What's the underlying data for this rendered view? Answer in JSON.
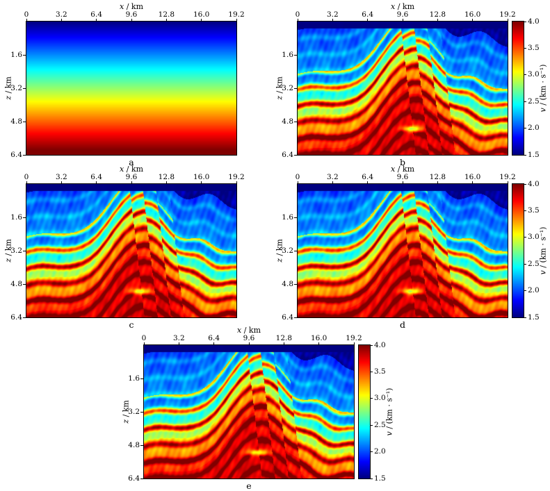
{
  "figure": {
    "type": "seismic-velocity-model-comparison",
    "xlabel": "x / km",
    "zlabel": "z / km",
    "colorbar_label": "v / (km · s⁻¹)",
    "x_ticks": [
      "0",
      "3.2",
      "6.4",
      "9.6",
      "12.8",
      "16.0",
      "19.2"
    ],
    "z_ticks": [
      "1.6",
      "3.2",
      "4.8",
      "6.4"
    ],
    "colorbar_ticks": [
      "4.0",
      "3.5",
      "3.0",
      "2.5",
      "2.0",
      "1.5"
    ],
    "velocity_min_kms": 1.5,
    "velocity_max_kms": 4.0,
    "colormap": "jet",
    "panels": [
      {
        "letter": "a",
        "kind": "initial",
        "colorbar": false
      },
      {
        "letter": "b",
        "kind": "marmousi",
        "colorbar": true
      },
      {
        "letter": "c",
        "kind": "marmousi",
        "colorbar": false
      },
      {
        "letter": "d",
        "kind": "marmousi",
        "colorbar": true
      },
      {
        "letter": "e",
        "kind": "marmousi",
        "colorbar": true
      }
    ]
  },
  "chart_data": [
    {
      "type": "heatmap",
      "panel": "a",
      "xlabel": "x / km",
      "ylabel": "z / km",
      "x_range": [
        0,
        19.2
      ],
      "y_range": [
        0,
        6.4
      ],
      "x_ticks": [
        0,
        3.2,
        6.4,
        9.6,
        12.8,
        16.0,
        19.2
      ],
      "y_ticks": [
        1.6,
        3.2,
        4.8,
        6.4
      ],
      "value_label": "v / (km · s⁻¹)",
      "value_range": [
        1.5,
        4.0
      ],
      "colorbar_ticks": [
        1.5,
        2.0,
        2.5,
        3.0,
        3.5,
        4.0
      ],
      "colorbar_shown": false,
      "colormap": "jet",
      "description": "Smooth laterally-invariant starting velocity model; velocity increases nearly linearly with depth from about 1.5 km/s at the surface to about 4.0 km/s at 6.4 km depth.",
      "depth_velocity_profile": [
        [
          0,
          1.5
        ],
        [
          1.6,
          2.15
        ],
        [
          3.2,
          2.8
        ],
        [
          4.8,
          3.45
        ],
        [
          6.4,
          4.1
        ]
      ]
    },
    {
      "type": "heatmap",
      "panel": "b",
      "xlabel": "x / km",
      "ylabel": "z / km",
      "x_range": [
        0,
        19.2
      ],
      "y_range": [
        0,
        6.4
      ],
      "x_ticks": [
        0,
        3.2,
        6.4,
        9.6,
        12.8,
        16.0,
        19.2
      ],
      "y_ticks": [
        1.6,
        3.2,
        4.8,
        6.4
      ],
      "value_label": "v / (km · s⁻¹)",
      "value_range": [
        1.5,
        4.0
      ],
      "colorbar_ticks": [
        1.5,
        2.0,
        2.5,
        3.0,
        3.5,
        4.0
      ],
      "colorbar_shown": true,
      "colormap": "jet",
      "description": "Marmousi-type velocity model: thin low-velocity (~1.5 km/s) layer at top, light-blue (~2-2.3 km/s) shallow sediments, folded and faulted dipping high-velocity (red, 3.5-4 km/s) layers forming an anticlinal/thrust complex near x = 9.6-13.5 km, wavy layered zone on the right, and a high-velocity (>3.5 km/s) massive deep section below about 4.6 km with a bright ~3 km/s lens near x = 10.4 km, z = 5.1 km."
    },
    {
      "type": "heatmap",
      "panel": "c",
      "xlabel": "x / km",
      "ylabel": "z / km",
      "x_range": [
        0,
        19.2
      ],
      "y_range": [
        0,
        6.4
      ],
      "x_ticks": [
        0,
        3.2,
        6.4,
        9.6,
        12.8,
        16.0,
        19.2
      ],
      "y_ticks": [
        1.6,
        3.2,
        4.8,
        6.4
      ],
      "value_label": "v / (km · s⁻¹)",
      "value_range": [
        1.5,
        4.0
      ],
      "colorbar_ticks": [
        1.5,
        2.0,
        2.5,
        3.0,
        3.5,
        4.0
      ],
      "colorbar_shown": false,
      "colormap": "jet",
      "description": "Marmousi-type velocity model result, visually similar to panel b with slight differences in fine-scale detail (inversion variant)."
    },
    {
      "type": "heatmap",
      "panel": "d",
      "xlabel": "x / km",
      "ylabel": "z / km",
      "x_range": [
        0,
        19.2
      ],
      "y_range": [
        0,
        6.4
      ],
      "x_ticks": [
        0,
        3.2,
        6.4,
        9.6,
        12.8,
        16.0,
        19.2
      ],
      "y_ticks": [
        1.6,
        3.2,
        4.8,
        6.4
      ],
      "value_label": "v / (km · s⁻¹)",
      "value_range": [
        1.5,
        4.0
      ],
      "colorbar_ticks": [
        1.5,
        2.0,
        2.5,
        3.0,
        3.5,
        4.0
      ],
      "colorbar_shown": true,
      "colormap": "jet",
      "description": "Marmousi-type velocity model result, visually similar to panel b with slight differences in fine-scale detail (inversion variant)."
    },
    {
      "type": "heatmap",
      "panel": "e",
      "xlabel": "x / km",
      "ylabel": "z / km",
      "x_range": [
        0,
        19.2
      ],
      "y_range": [
        0,
        6.4
      ],
      "x_ticks": [
        0,
        3.2,
        6.4,
        9.6,
        12.8,
        16.0,
        19.2
      ],
      "y_ticks": [
        1.6,
        3.2,
        4.8,
        6.4
      ],
      "value_label": "v / (km · s⁻¹)",
      "value_range": [
        1.5,
        4.0
      ],
      "colorbar_ticks": [
        1.5,
        2.0,
        2.5,
        3.0,
        3.5,
        4.0
      ],
      "colorbar_shown": true,
      "colormap": "jet",
      "description": "Marmousi-type velocity model result (bottom centered panel), visually similar to panels b-d with slight differences in fine-scale detail."
    }
  ]
}
